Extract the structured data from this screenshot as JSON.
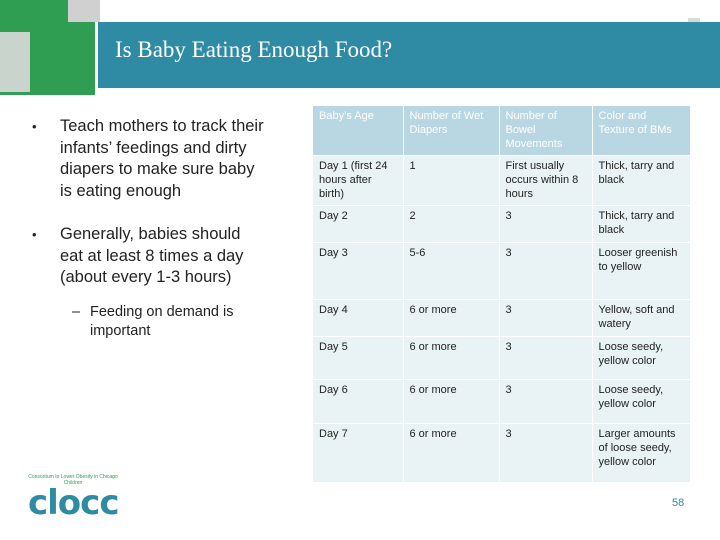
{
  "slide": {
    "title": "Is Baby Eating Enough Food?",
    "page_number": "58"
  },
  "bullets": [
    {
      "text": "Teach mothers to track their infants’ feedings and dirty diapers to make sure baby is eating enough"
    },
    {
      "text": "Generally, babies should eat at least 8 times a day (about every 1-3 hours)"
    }
  ],
  "sub_bullet": {
    "text": "Feeding on demand is important"
  },
  "table": {
    "headers": [
      "Baby’s Age",
      "Number of Wet Diapers",
      "Number of Bowel Movements",
      "Color and Texture of BMs"
    ],
    "rows": [
      [
        "Day 1 (first 24 hours after birth)",
        "1",
        "First usually occurs within 8 hours",
        "Thick, tarry and black"
      ],
      [
        "Day 2",
        "2",
        "3",
        "Thick, tarry and black"
      ],
      [
        "Day 3",
        "5-6",
        "3",
        "Looser greenish to yellow"
      ],
      [
        "Day 4",
        "6 or more",
        "3",
        "Yellow, soft and watery"
      ],
      [
        "Day 5",
        "6 or more",
        "3",
        "Loose seedy, yellow color"
      ],
      [
        "Day 6",
        "6 or more",
        "3",
        "Loose seedy, yellow color"
      ],
      [
        "Day 7",
        "6 or more",
        "3",
        "Larger amounts of loose seedy, yellow color"
      ]
    ]
  },
  "logo": {
    "tagline": "Consortium to Lower Obesity in Chicago Children",
    "wordmark": "clocc"
  }
}
